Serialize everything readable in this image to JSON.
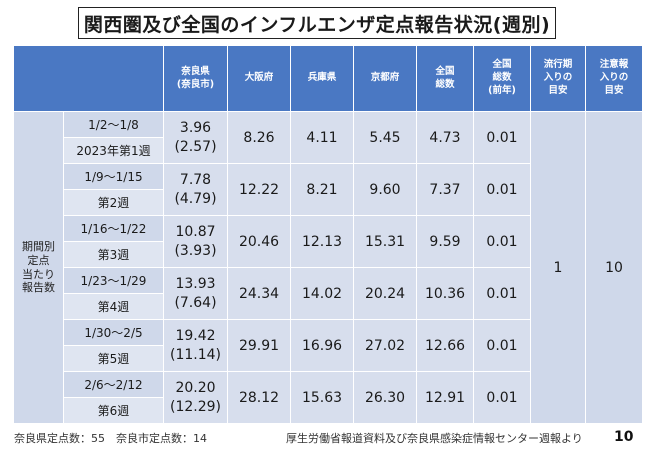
{
  "title": "関西圏及び全国のインフルエンザ定点報告状況(週別)",
  "header": {
    "nara_line1": "奈良県",
    "nara_line2": "(奈良市)",
    "osaka": "大阪府",
    "hyogo": "兵庫県",
    "kyoto": "京都府",
    "national_line1": "全国",
    "national_line2": "総数",
    "prev_line1": "全国",
    "prev_line2": "総数",
    "prev_line3": "(前年)",
    "epidemic_line1": "流行期",
    "epidemic_line2": "入りの",
    "epidemic_line3": "目安",
    "warning_line1": "注意報",
    "warning_line2": "入りの",
    "warning_line3": "目安"
  },
  "row_label": {
    "line1": "期間別",
    "line2": "定点",
    "line3": "当たり",
    "line4": "報告数"
  },
  "epidemic_threshold": "1",
  "warning_threshold": "10",
  "weeks": [
    {
      "date": "1/2〜1/8",
      "week": "2023年第1週",
      "nara": "3.96",
      "nara_city": "(2.57)",
      "osaka": "8.26",
      "hyogo": "4.11",
      "kyoto": "5.45",
      "national": "4.73",
      "prev": "0.01"
    },
    {
      "date": "1/9〜1/15",
      "week": "第2週",
      "nara": "7.78",
      "nara_city": "(4.79)",
      "osaka": "12.22",
      "hyogo": "8.21",
      "kyoto": "9.60",
      "national": "7.37",
      "prev": "0.01"
    },
    {
      "date": "1/16〜1/22",
      "week": "第3週",
      "nara": "10.87",
      "nara_city": "(3.93)",
      "osaka": "20.46",
      "hyogo": "12.13",
      "kyoto": "15.31",
      "national": "9.59",
      "prev": "0.01"
    },
    {
      "date": "1/23〜1/29",
      "week": "第4週",
      "nara": "13.93",
      "nara_city": "(7.64)",
      "osaka": "24.34",
      "hyogo": "14.02",
      "kyoto": "20.24",
      "national": "10.36",
      "prev": "0.01"
    },
    {
      "date": "1/30〜2/5",
      "week": "第5週",
      "nara": "19.42",
      "nara_city": "(11.14)",
      "osaka": "29.91",
      "hyogo": "16.96",
      "kyoto": "27.02",
      "national": "12.66",
      "prev": "0.01"
    },
    {
      "date": "2/6〜2/12",
      "week": "第6週",
      "nara": "20.20",
      "nara_city": "(12.29)",
      "osaka": "28.12",
      "hyogo": "15.63",
      "kyoto": "26.30",
      "national": "12.91",
      "prev": "0.01"
    }
  ],
  "footer": {
    "left": "奈良県定点数：55　奈良市定点数：14",
    "right": "厚生労働省報道資料及び奈良県感染症情報センター週報より",
    "page_number": "10"
  }
}
